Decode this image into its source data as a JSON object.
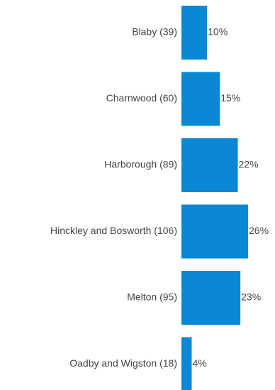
{
  "chart_data": {
    "type": "bar",
    "orientation": "horizontal",
    "categories": [
      "Blaby (39)",
      "Charnwood (60)",
      "Harborough (89)",
      "Hinckley and Bosworth (106)",
      "Melton (95)",
      "Oadby and Wigston (18)"
    ],
    "values": [
      10,
      15,
      22,
      26,
      23,
      4
    ],
    "value_labels": [
      "10%",
      "15%",
      "22%",
      "26%",
      "23%",
      "4%"
    ],
    "xlim": [
      0,
      26
    ],
    "grid": false,
    "legend": "none",
    "bar_color": "#0a88d4",
    "title": "",
    "xlabel": "",
    "ylabel": ""
  }
}
